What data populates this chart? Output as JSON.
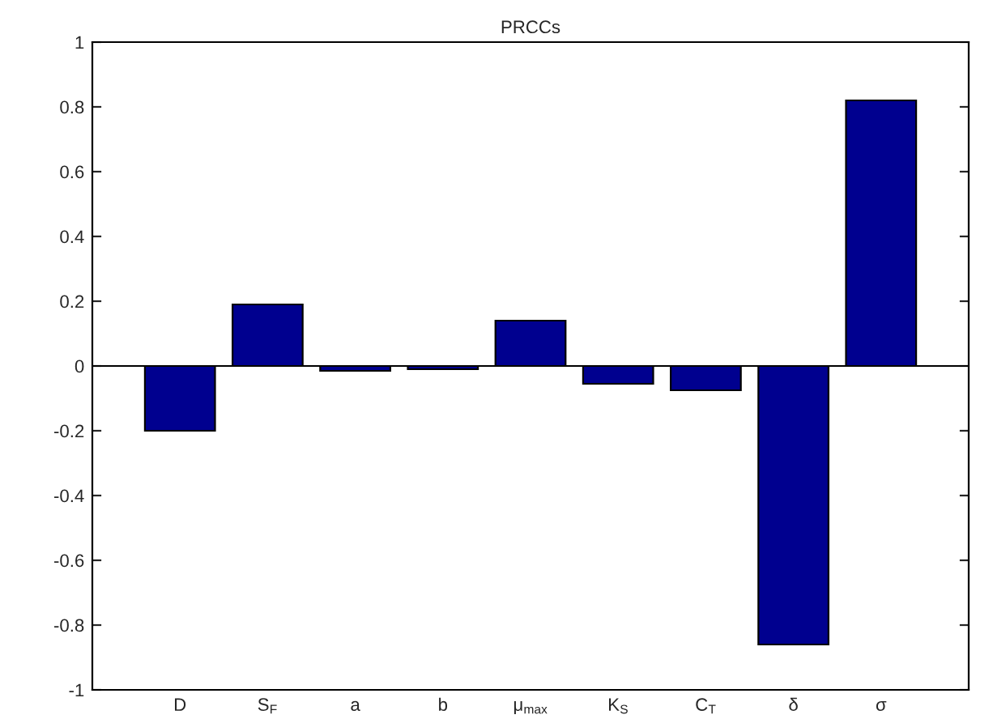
{
  "chart_data": {
    "type": "bar",
    "title": "PRCCs",
    "categories": [
      "D",
      "S$_{F}$",
      "a",
      "b",
      "μ$_{max}$",
      "K$_{S}$",
      "C$_{T}$",
      "δ",
      "σ"
    ],
    "values": [
      -0.2,
      0.19,
      -0.015,
      -0.01,
      0.14,
      -0.055,
      -0.075,
      -0.86,
      0.82
    ],
    "color": "#00008f",
    "ylim": [
      -1,
      1
    ],
    "yticks": [
      -1,
      -0.8,
      -0.6,
      -0.4,
      -0.2,
      0,
      0.2,
      0.4,
      0.6,
      0.8,
      1
    ],
    "ref_lines": [
      {
        "axis": "y",
        "value": 0,
        "color": "#000000"
      }
    ],
    "grid": false
  }
}
